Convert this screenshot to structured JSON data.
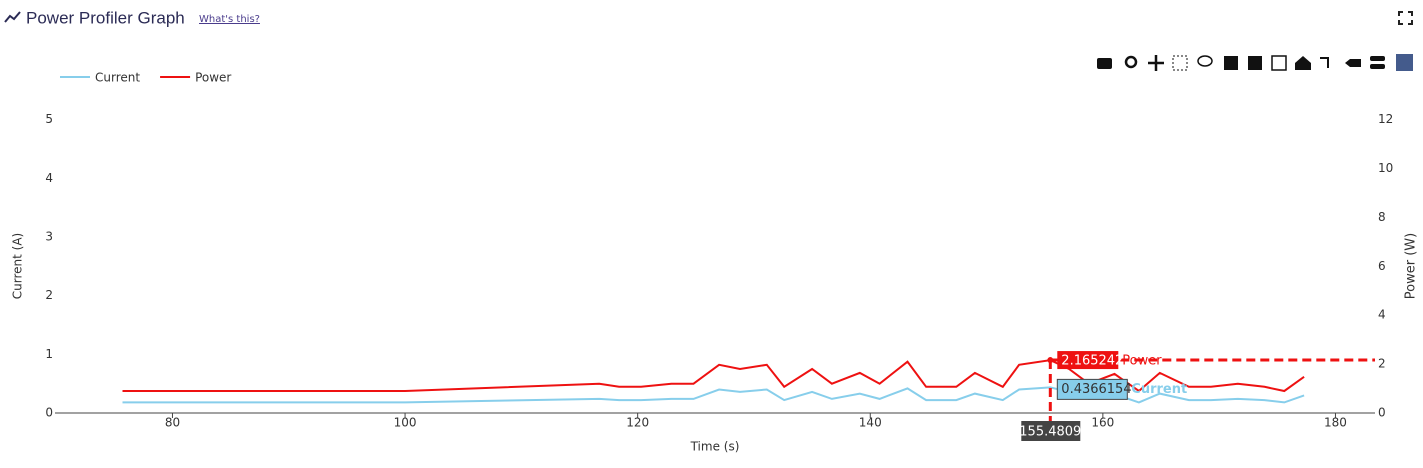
{
  "header": {
    "title": "Power Profiler Graph",
    "link": "What's this?"
  },
  "chart_data": {
    "type": "line",
    "x_label": "Time (s)",
    "y_label": "Current (A)",
    "y2_label": "Power (W)",
    "x": [
      75.7,
      100,
      116.7,
      118.4,
      120.3,
      122.9,
      124.8,
      127.0,
      128.8,
      131.1,
      132.6,
      135.0,
      136.7,
      139.1,
      140.8,
      143.2,
      144.8,
      147.4,
      149.0,
      151.4,
      152.8,
      155.4809,
      157.1,
      158.8,
      161.0,
      163.1,
      164.9,
      167.4,
      169.3,
      171.6,
      173.9,
      175.6,
      177.3
    ],
    "series": [
      {
        "name": "Current",
        "color": "#87ceeb",
        "axis": "y",
        "values": [
          0.18,
          0.18,
          0.24,
          0.22,
          0.22,
          0.24,
          0.24,
          0.4,
          0.36,
          0.4,
          0.22,
          0.36,
          0.24,
          0.33,
          0.24,
          0.42,
          0.22,
          0.22,
          0.33,
          0.22,
          0.4,
          0.4366154,
          0.36,
          0.24,
          0.32,
          0.18,
          0.33,
          0.22,
          0.22,
          0.24,
          0.22,
          0.18,
          0.3
        ]
      },
      {
        "name": "Power",
        "color": "#ee1111",
        "axis": "y2",
        "values": [
          0.9,
          0.9,
          1.2,
          1.07,
          1.07,
          1.2,
          1.2,
          1.97,
          1.8,
          1.97,
          1.07,
          1.8,
          1.2,
          1.64,
          1.2,
          2.1,
          1.07,
          1.07,
          1.64,
          1.07,
          1.97,
          2.165242,
          1.8,
          1.2,
          1.6,
          0.9,
          1.64,
          1.07,
          1.07,
          1.2,
          1.07,
          0.9,
          1.48
        ]
      }
    ],
    "xlim": [
      69.9,
      183.4
    ],
    "xticks": [
      80,
      100,
      120,
      140,
      160,
      180
    ],
    "ylim": [
      0,
      5.3
    ],
    "yticks": [
      0,
      1,
      2,
      3,
      4,
      5
    ],
    "y2lim": [
      0,
      12.72
    ],
    "y2ticks": [
      0,
      2,
      4,
      6,
      8,
      10,
      12
    ],
    "grid": false,
    "legend": "top-left",
    "hover": {
      "x": 155.4809,
      "power": 2.165242,
      "current": 0.4366154
    }
  }
}
